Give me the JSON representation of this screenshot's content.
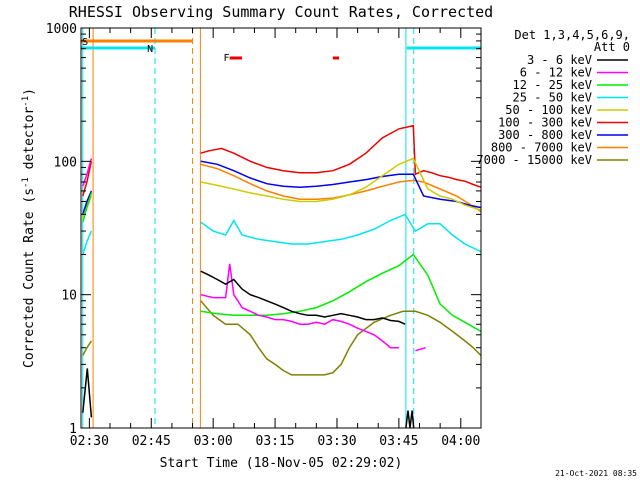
{
  "chart_data": {
    "type": "line",
    "title": "RHESSI Observing Summary Count Rates, Corrected",
    "xlabel": "Start Time (18-Nov-05 02:29:02)",
    "ylabel_main": "Corrected Count Rate (s",
    "ylabel_sup1": "-1",
    "ylabel_mid": " detector",
    "ylabel_sup2": "-1",
    "ylabel_end": ")",
    "y_scale": "log",
    "ylim": [
      1,
      1000
    ],
    "xlim_min": [
      -1.03,
      95.9
    ],
    "x_ticks": [
      {
        "value": 1,
        "label": "02:30"
      },
      {
        "value": 16,
        "label": "02:45"
      },
      {
        "value": 31,
        "label": "03:00"
      },
      {
        "value": 46,
        "label": "03:15"
      },
      {
        "value": 61,
        "label": "03:30"
      },
      {
        "value": 76,
        "label": "03:45"
      },
      {
        "value": 91,
        "label": "04:00"
      }
    ],
    "y_ticks": [
      {
        "value": 1,
        "label": "1"
      },
      {
        "value": 10,
        "label": "10"
      },
      {
        "value": 100,
        "label": "100"
      },
      {
        "value": 1000,
        "label": "1000"
      }
    ],
    "legend_title": "Det 1,3,4,5,6,9,",
    "legend_subtitle": "Att 0",
    "legend_position": "top-right outside plot",
    "footer": "21-Oct-2021 08:35",
    "bars": {
      "S": {
        "label": "S",
        "x_range": [
          -1,
          25.9
        ],
        "color": "#ff7f00"
      },
      "N1": {
        "label": "N",
        "x_range": [
          -1,
          16.9
        ],
        "color": "#00e5ee"
      },
      "N2": {
        "label": "",
        "x_range": [
          77.9,
          95.9
        ],
        "color": "#00e5ee"
      },
      "F": {
        "label": "F",
        "segments": [
          [
            35,
            38
          ],
          [
            60,
            61.5
          ]
        ],
        "color": "#ee0000"
      }
    },
    "vlines": [
      {
        "x": -0.6,
        "color": "#00e5ee",
        "style": "solid"
      },
      {
        "x": 1.9,
        "color": "#ff7f00",
        "style": "solid"
      },
      {
        "x": 16.9,
        "color": "#00e5ee",
        "style": "dashed"
      },
      {
        "x": 26,
        "color": "#ff7f00",
        "style": "dashed"
      },
      {
        "x": 27.9,
        "color": "#ff7f00",
        "style": "solid"
      },
      {
        "x": 77.7,
        "color": "#00e5ee",
        "style": "solid"
      },
      {
        "x": 79.6,
        "color": "#00e5ee",
        "style": "dashed"
      },
      {
        "x": 95.9,
        "color": "#00e5ee",
        "style": "dashed"
      }
    ],
    "series": [
      {
        "name": "3 - 6 keV",
        "color": "#000000",
        "segments": [
          {
            "x": [
              -0.6,
              0.5,
              1.5
            ],
            "y": [
              1.3,
              2.8,
              1.2
            ]
          },
          {
            "x": [
              28,
              30,
              32,
              34,
              36,
              38,
              40,
              42,
              44,
              46,
              48,
              50,
              52,
              54,
              56,
              58,
              60,
              62,
              64,
              66,
              68,
              70,
              72,
              74,
              76,
              77.5
            ],
            "y": [
              15,
              14,
              13,
              12,
              13,
              11,
              10,
              9.5,
              9,
              8.5,
              8,
              7.5,
              7.2,
              7,
              7,
              6.8,
              7,
              7.2,
              7,
              6.8,
              6.5,
              6.5,
              6.7,
              6.4,
              6.3,
              6.0
            ]
          },
          {
            "x": [
              77.7,
              78.2,
              78.7,
              79.2,
              79.6
            ],
            "y": [
              1.0,
              1.35,
              1.0,
              1.35,
              1.0
            ]
          }
        ]
      },
      {
        "name": "6 - 12 keV",
        "color": "#ff00ff",
        "segments": [
          {
            "x": [
              -0.6,
              0.4,
              1.5
            ],
            "y": [
              65,
              80,
              105
            ]
          },
          {
            "x": [
              28,
              31,
              34,
              35,
              36,
              37,
              38,
              40,
              42,
              44,
              46,
              48,
              50,
              52,
              54,
              56,
              58,
              60,
              62,
              64,
              66,
              68,
              70,
              72,
              74,
              76
            ],
            "y": [
              10,
              9.5,
              9.5,
              17,
              10,
              9,
              8,
              7.5,
              7,
              6.8,
              6.5,
              6.5,
              6.3,
              6.0,
              6.0,
              6.2,
              6.0,
              6.5,
              6.3,
              6.0,
              5.6,
              5.3,
              5.0,
              4.5,
              4.0,
              4.0
            ]
          },
          {
            "x": [
              80,
              82.5
            ],
            "y": [
              3.8,
              4.0
            ]
          }
        ]
      },
      {
        "name": "12 - 25 keV",
        "color": "#00ee00",
        "segments": [
          {
            "x": [
              -0.6,
              0.4,
              1.5
            ],
            "y": [
              35,
              45,
              58
            ]
          },
          {
            "x": [
              28,
              32,
              36,
              40,
              44,
              48,
              52,
              56,
              60,
              64,
              68,
              72,
              76,
              79.5,
              83,
              86,
              89,
              92,
              95.9
            ],
            "y": [
              7.5,
              7.2,
              7.0,
              7.0,
              7.0,
              7.2,
              7.5,
              8.0,
              9.0,
              10.5,
              12.5,
              14.5,
              16.5,
              20,
              14,
              8.5,
              7,
              6.2,
              5.3
            ]
          }
        ]
      },
      {
        "name": "25 - 50 keV",
        "color": "#00e5ee",
        "segments": [
          {
            "x": [
              -0.6,
              0.4,
              1.5
            ],
            "y": [
              20,
              25,
              30
            ]
          },
          {
            "x": [
              28,
              31,
              34,
              36,
              38,
              42,
              46,
              50,
              54,
              58,
              62,
              66,
              70,
              74,
              77.5,
              80,
              83,
              86,
              89,
              92,
              95.9
            ],
            "y": [
              35,
              30,
              28,
              36,
              28,
              26,
              25,
              24,
              24,
              25,
              26,
              28,
              31,
              36,
              40,
              30,
              34,
              34,
              28,
              24,
              21
            ]
          }
        ]
      },
      {
        "name": "50 - 100 keV",
        "color": "#cccc00",
        "segments": [
          {
            "x": [
              -0.6,
              0.4,
              1.5
            ],
            "y": [
              38,
              45,
              55
            ]
          },
          {
            "x": [
              28,
              32,
              36,
              40,
              44,
              48,
              52,
              56,
              60,
              64,
              68,
              72,
              76,
              79.5,
              83,
              86,
              89,
              92,
              95.9
            ],
            "y": [
              70,
              66,
              62,
              58,
              55,
              52,
              50,
              50,
              52,
              56,
              64,
              78,
              95,
              105,
              62,
              55,
              52,
              47,
              43
            ]
          }
        ]
      },
      {
        "name": "100 - 300 keV",
        "color": "#ee0000",
        "segments": [
          {
            "x": [
              -0.6,
              0.4,
              1.5
            ],
            "y": [
              55,
              70,
              100
            ]
          },
          {
            "x": [
              28,
              30,
              33,
              36,
              40,
              44,
              48,
              52,
              56,
              60,
              64,
              68,
              72,
              76,
              79.5,
              80,
              82,
              84,
              86,
              88,
              90,
              92,
              94,
              95.9
            ],
            "y": [
              115,
              120,
              125,
              115,
              100,
              90,
              85,
              82,
              82,
              85,
              95,
              115,
              150,
              175,
              185,
              80,
              85,
              82,
              78,
              76,
              73,
              71,
              67,
              64
            ]
          }
        ]
      },
      {
        "name": "300 - 800 keV",
        "color": "#0000ee",
        "segments": [
          {
            "x": [
              -0.6,
              0.4,
              1.5
            ],
            "y": [
              40,
              50,
              60
            ]
          },
          {
            "x": [
              28,
              32,
              36,
              40,
              44,
              48,
              52,
              56,
              60,
              64,
              68,
              72,
              76,
              79.5,
              82,
              86,
              90,
              93,
              95.9
            ],
            "y": [
              100,
              95,
              85,
              75,
              68,
              65,
              64,
              65,
              67,
              70,
              73,
              77,
              80,
              80,
              55,
              52,
              50,
              47,
              45
            ]
          }
        ]
      },
      {
        "name": "800 - 7000 keV",
        "color": "#ff7f00",
        "segments": [
          {
            "x": [
              -0.6,
              0.4,
              1.5
            ],
            "y": [
              40,
              48,
              58
            ]
          },
          {
            "x": [
              28,
              32,
              36,
              40,
              44,
              48,
              52,
              56,
              60,
              64,
              68,
              72,
              76,
              79.5,
              82,
              86,
              90,
              93,
              95.9
            ],
            "y": [
              95,
              88,
              78,
              68,
              60,
              55,
              52,
              52,
              53,
              56,
              60,
              65,
              70,
              72,
              70,
              62,
              55,
              48,
              42
            ]
          }
        ]
      },
      {
        "name": "7000 - 15000 keV",
        "color": "#808000",
        "segments": [
          {
            "x": [
              -0.6,
              0.4,
              1.5
            ],
            "y": [
              3.5,
              4.0,
              4.5
            ]
          },
          {
            "x": [
              28,
              31,
              34,
              37,
              40,
              42,
              44,
              46,
              48,
              50,
              52,
              54,
              56,
              58,
              60,
              62,
              64,
              66,
              70,
              74,
              77,
              80,
              83,
              86,
              89,
              92,
              94,
              95.9
            ],
            "y": [
              9,
              7,
              6,
              6,
              5,
              4,
              3.3,
              3.0,
              2.7,
              2.5,
              2.5,
              2.5,
              2.5,
              2.5,
              2.6,
              3.0,
              4.0,
              5.0,
              6.2,
              7.0,
              7.5,
              7.5,
              7.0,
              6.2,
              5.3,
              4.5,
              4.0,
              3.5
            ]
          }
        ]
      }
    ]
  }
}
